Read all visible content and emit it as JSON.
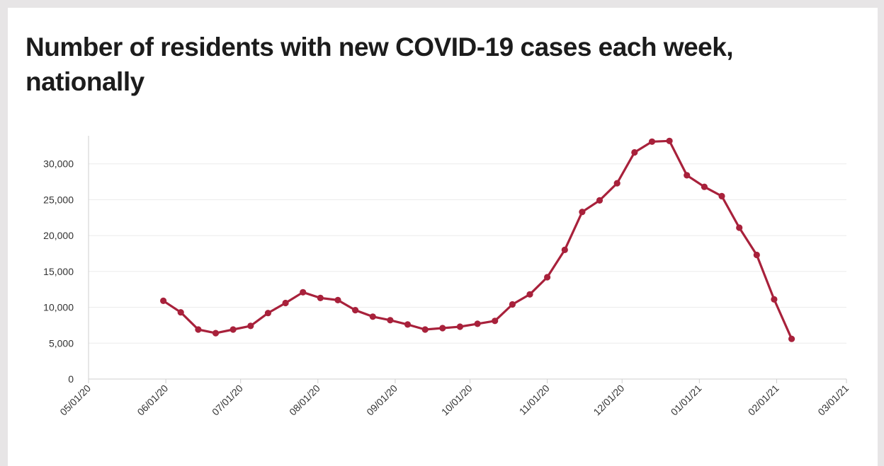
{
  "colors": {
    "line": "#a8213b",
    "grid": "#ebebeb",
    "axis": "#cfcfcf",
    "title": "#1c1c1c",
    "background": "#ffffff",
    "frame": "#e7e5e6"
  },
  "chart_data": {
    "type": "line",
    "title": "Number of residents with new COVID-19 cases each week, nationally",
    "xlabel": "",
    "ylabel": "",
    "x_range": [
      "2020-05-01",
      "2021-03-01"
    ],
    "ylim": [
      0,
      35000
    ],
    "y_ticks": [
      {
        "value": 0,
        "label": "0"
      },
      {
        "value": 5000,
        "label": "5,000"
      },
      {
        "value": 10000,
        "label": "10,000"
      },
      {
        "value": 15000,
        "label": "15,000"
      },
      {
        "value": 20000,
        "label": "20,000"
      },
      {
        "value": 25000,
        "label": "25,000"
      },
      {
        "value": 30000,
        "label": "30,000"
      }
    ],
    "x_ticks": [
      {
        "date": "2020-05-01",
        "label": "05/01/20"
      },
      {
        "date": "2020-06-01",
        "label": "06/01/20"
      },
      {
        "date": "2020-07-01",
        "label": "07/01/20"
      },
      {
        "date": "2020-08-01",
        "label": "08/01/20"
      },
      {
        "date": "2020-09-01",
        "label": "09/01/20"
      },
      {
        "date": "2020-10-01",
        "label": "10/01/20"
      },
      {
        "date": "2020-11-01",
        "label": "11/01/20"
      },
      {
        "date": "2020-12-01",
        "label": "12/01/20"
      },
      {
        "date": "2021-01-01",
        "label": "01/01/21"
      },
      {
        "date": "2021-02-01",
        "label": "02/01/21"
      },
      {
        "date": "2021-03-01",
        "label": "03/01/21"
      }
    ],
    "grid": true,
    "series": [
      {
        "points": [
          {
            "x": "2020-05-31",
            "y": 10900
          },
          {
            "x": "2020-06-07",
            "y": 9300
          },
          {
            "x": "2020-06-14",
            "y": 6900
          },
          {
            "x": "2020-06-21",
            "y": 6400
          },
          {
            "x": "2020-06-28",
            "y": 6900
          },
          {
            "x": "2020-07-05",
            "y": 7400
          },
          {
            "x": "2020-07-12",
            "y": 9200
          },
          {
            "x": "2020-07-19",
            "y": 10600
          },
          {
            "x": "2020-07-26",
            "y": 12100
          },
          {
            "x": "2020-08-02",
            "y": 11300
          },
          {
            "x": "2020-08-09",
            "y": 11000
          },
          {
            "x": "2020-08-16",
            "y": 9600
          },
          {
            "x": "2020-08-23",
            "y": 8700
          },
          {
            "x": "2020-08-30",
            "y": 8200
          },
          {
            "x": "2020-09-06",
            "y": 7600
          },
          {
            "x": "2020-09-13",
            "y": 6900
          },
          {
            "x": "2020-09-20",
            "y": 7100
          },
          {
            "x": "2020-09-27",
            "y": 7300
          },
          {
            "x": "2020-10-04",
            "y": 7700
          },
          {
            "x": "2020-10-11",
            "y": 8100
          },
          {
            "x": "2020-10-18",
            "y": 10400
          },
          {
            "x": "2020-10-25",
            "y": 11800
          },
          {
            "x": "2020-11-01",
            "y": 14200
          },
          {
            "x": "2020-11-08",
            "y": 18000
          },
          {
            "x": "2020-11-15",
            "y": 23300
          },
          {
            "x": "2020-11-22",
            "y": 24900
          },
          {
            "x": "2020-11-29",
            "y": 27300
          },
          {
            "x": "2020-12-06",
            "y": 31600
          },
          {
            "x": "2020-12-13",
            "y": 33100
          },
          {
            "x": "2020-12-20",
            "y": 33200
          },
          {
            "x": "2020-12-27",
            "y": 28400
          },
          {
            "x": "2021-01-03",
            "y": 26800
          },
          {
            "x": "2021-01-10",
            "y": 25500
          },
          {
            "x": "2021-01-17",
            "y": 21100
          },
          {
            "x": "2021-01-24",
            "y": 17300
          },
          {
            "x": "2021-01-31",
            "y": 11100
          },
          {
            "x": "2021-02-07",
            "y": 5600
          }
        ]
      }
    ]
  }
}
